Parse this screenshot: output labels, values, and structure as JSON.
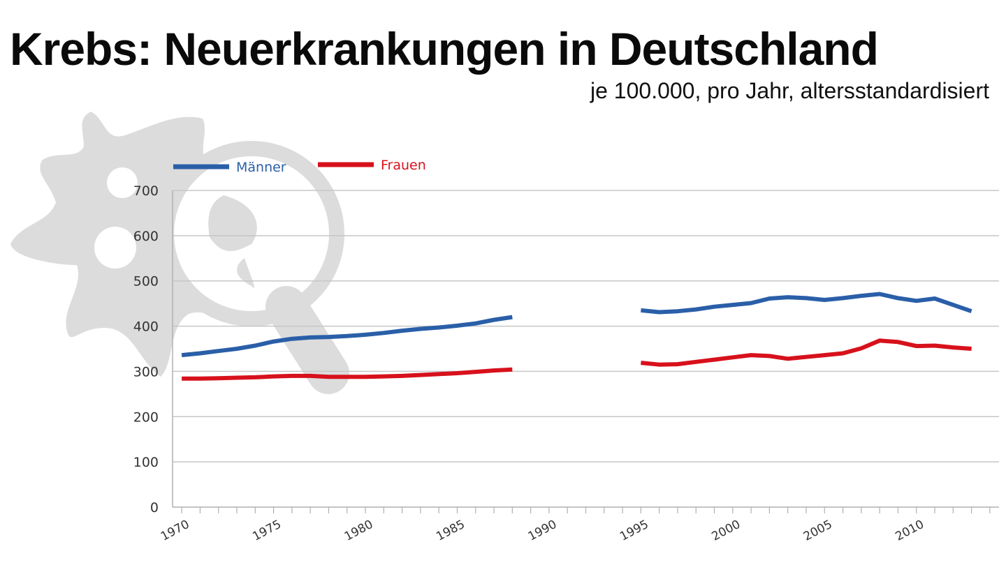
{
  "header": {
    "title": "Krebs: Neuerkrankungen in Deutschland",
    "subtitle": "je 100.000, pro Jahr, altersstandardisiert"
  },
  "watermark": {
    "icon": "cancer-cell-magnifier-icon",
    "color": "#dcdcdc"
  },
  "chart_data": {
    "type": "line",
    "title": "Krebs: Neuerkrankungen in Deutschland",
    "subtitle": "je 100.000, pro Jahr, altersstandardisiert",
    "xlabel": "",
    "ylabel": "",
    "xlim": [
      1969.5,
      2014.5
    ],
    "ylim": [
      0,
      700
    ],
    "yticks": [
      0,
      100,
      200,
      300,
      400,
      500,
      600,
      700
    ],
    "xtick_labels": [
      "1970",
      "1975",
      "1980",
      "1985",
      "1990",
      "1995",
      "2000",
      "2005",
      "2010"
    ],
    "grid": true,
    "legend_position": "top-left",
    "series": [
      {
        "name": "Männer",
        "color": "#2a5fa8",
        "segments": [
          {
            "x": [
              1970,
              1971,
              1972,
              1973,
              1974,
              1975,
              1976,
              1977,
              1978,
              1979,
              1980,
              1981,
              1982,
              1983,
              1984,
              1985,
              1986,
              1987,
              1988
            ],
            "y": [
              336,
              340,
              345,
              350,
              357,
              366,
              372,
              375,
              376,
              378,
              381,
              385,
              390,
              394,
              397,
              401,
              406,
              414,
              420
            ]
          },
          {
            "x": [
              1995,
              1996,
              1997,
              1998,
              1999,
              2000,
              2001,
              2002,
              2003,
              2004,
              2005,
              2006,
              2007,
              2008,
              2009,
              2010,
              2011,
              2012,
              2013
            ],
            "y": [
              435,
              431,
              433,
              437,
              443,
              447,
              451,
              461,
              464,
              462,
              458,
              462,
              467,
              471,
              462,
              456,
              461,
              447,
              433
            ]
          }
        ]
      },
      {
        "name": "Frauen",
        "color": "#d7111c",
        "segments": [
          {
            "x": [
              1970,
              1971,
              1972,
              1973,
              1974,
              1975,
              1976,
              1977,
              1978,
              1979,
              1980,
              1981,
              1982,
              1983,
              1984,
              1985,
              1986,
              1987,
              1988
            ],
            "y": [
              284,
              284,
              285,
              286,
              287,
              289,
              290,
              290,
              288,
              288,
              288,
              289,
              290,
              292,
              294,
              296,
              299,
              302,
              304
            ]
          },
          {
            "x": [
              1995,
              1996,
              1997,
              1998,
              1999,
              2000,
              2001,
              2002,
              2003,
              2004,
              2005,
              2006,
              2007,
              2008,
              2009,
              2010,
              2011,
              2012,
              2013
            ],
            "y": [
              319,
              315,
              316,
              321,
              326,
              331,
              336,
              334,
              328,
              332,
              336,
              340,
              351,
              368,
              365,
              356,
              357,
              353,
              350
            ]
          }
        ]
      }
    ]
  }
}
